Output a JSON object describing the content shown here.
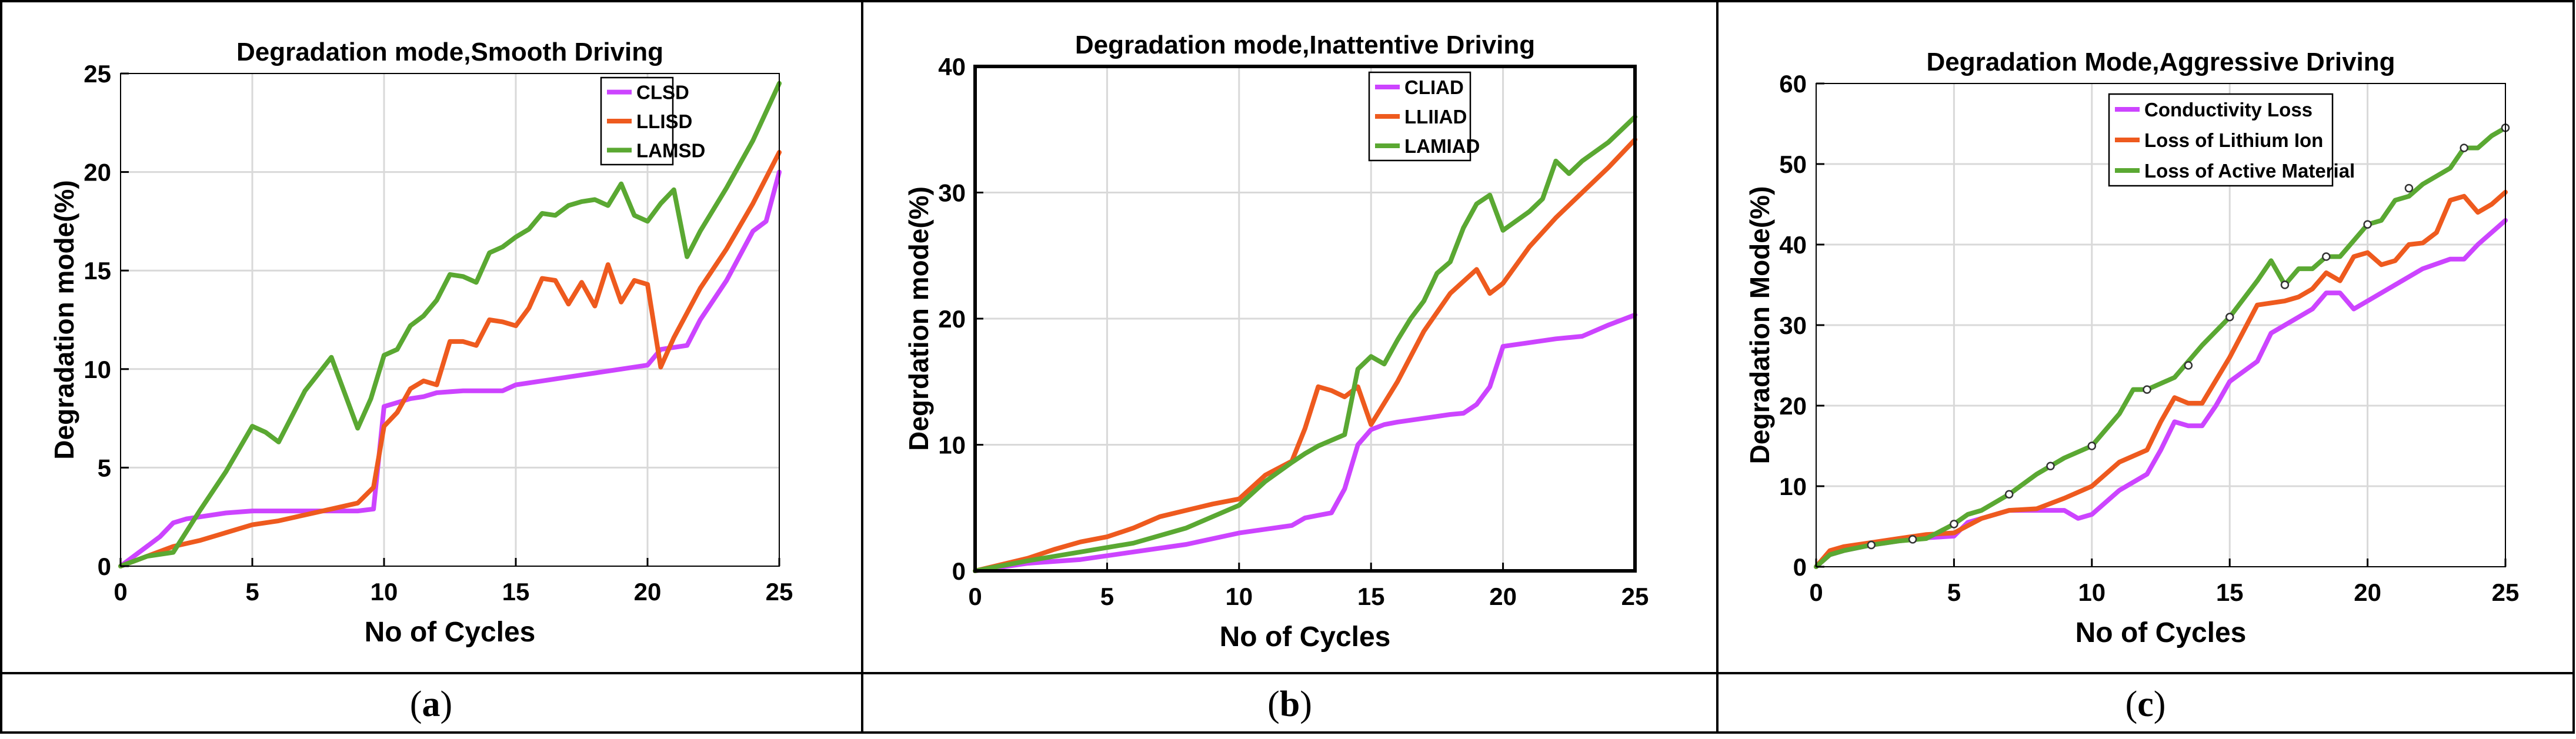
{
  "panels": [
    {
      "label": "(a)",
      "letter": "a"
    },
    {
      "label": "(b)",
      "letter": "b"
    },
    {
      "label": "(c)",
      "letter": "c"
    }
  ],
  "chart_data": [
    {
      "type": "line",
      "title": "Degradation mode,Smooth Driving",
      "xlabel": "No of Cycles",
      "ylabel": "Degradation mode(%)",
      "xlim": [
        0,
        25
      ],
      "ylim": [
        0,
        25
      ],
      "xticks": [
        0,
        5,
        10,
        15,
        20,
        25
      ],
      "yticks": [
        0,
        5,
        10,
        15,
        20,
        25
      ],
      "grid": true,
      "legend_position": "top-right",
      "series": [
        {
          "name": "CLSD",
          "color": "#cc44ff",
          "x": [
            0,
            1,
            1.5,
            2,
            2.5,
            3,
            4,
            5,
            6,
            7,
            8,
            9,
            9.6,
            10,
            10.5,
            11,
            11.5,
            12,
            13,
            14,
            14.5,
            15,
            16,
            17,
            18,
            19,
            20,
            20.5,
            21,
            21.5,
            22,
            23,
            24,
            24.5,
            25
          ],
          "y": [
            0,
            1,
            1.5,
            2.2,
            2.4,
            2.5,
            2.7,
            2.8,
            2.8,
            2.8,
            2.8,
            2.8,
            2.9,
            8.1,
            8.3,
            8.5,
            8.6,
            8.8,
            8.9,
            8.9,
            8.9,
            9.2,
            9.4,
            9.6,
            9.8,
            10,
            10.2,
            11,
            11.1,
            11.2,
            12.5,
            14.5,
            17,
            17.5,
            20
          ]
        },
        {
          "name": "LLISD",
          "color": "#ee5a1e",
          "x": [
            0,
            1,
            2,
            3,
            4,
            5,
            6,
            7,
            8,
            9,
            9.6,
            10,
            10.5,
            11,
            11.5,
            12,
            12.5,
            13,
            13.5,
            14,
            14.5,
            15,
            15.5,
            16,
            16.5,
            17,
            17.5,
            18,
            18.5,
            19,
            19.5,
            20,
            20.5,
            21,
            22,
            23,
            24,
            25
          ],
          "y": [
            0,
            0.5,
            1,
            1.3,
            1.7,
            2.1,
            2.3,
            2.6,
            2.9,
            3.2,
            4,
            7.1,
            7.8,
            9,
            9.4,
            9.2,
            11.4,
            11.4,
            11.2,
            12.5,
            12.4,
            12.2,
            13.1,
            14.6,
            14.5,
            13.3,
            14.4,
            13.2,
            15.3,
            13.4,
            14.5,
            14.3,
            10.1,
            11.6,
            14.1,
            16.1,
            18.4,
            21
          ]
        },
        {
          "name": "LAMSD",
          "color": "#5aa832",
          "x": [
            0,
            1,
            2,
            3,
            4,
            5,
            5.5,
            6,
            7,
            8,
            9,
            9.5,
            10,
            10.5,
            11,
            11.5,
            12,
            12.5,
            13,
            13.5,
            14,
            14.5,
            15,
            15.5,
            16,
            16.5,
            17,
            17.5,
            18,
            18.5,
            19,
            19.5,
            20,
            20.5,
            21,
            21.5,
            22,
            23,
            24,
            25
          ],
          "y": [
            0,
            0.5,
            0.7,
            2.8,
            4.8,
            7.1,
            6.8,
            6.3,
            8.9,
            10.6,
            7,
            8.5,
            10.7,
            11,
            12.2,
            12.7,
            13.5,
            14.8,
            14.7,
            14.4,
            15.9,
            16.2,
            16.7,
            17.1,
            17.9,
            17.8,
            18.3,
            18.5,
            18.6,
            18.3,
            19.4,
            17.8,
            17.5,
            18.4,
            19.1,
            15.7,
            17,
            19.2,
            21.6,
            24.5
          ]
        }
      ]
    },
    {
      "type": "line",
      "title": "Degradation mode,Inattentive Driving",
      "xlabel": "No of Cycles",
      "ylabel": "Degrdation mode(%)",
      "xlim": [
        0,
        25
      ],
      "ylim": [
        0,
        40
      ],
      "xticks": [
        0,
        5,
        10,
        15,
        20,
        25
      ],
      "yticks": [
        0,
        10,
        20,
        30,
        40
      ],
      "grid": true,
      "legend_position": "top-right",
      "series": [
        {
          "name": "CLIAD",
          "color": "#cc44ff",
          "x": [
            0,
            2,
            4,
            6,
            8,
            10,
            12,
            12.5,
            13,
            13.5,
            14,
            14.5,
            15,
            15.5,
            16,
            17,
            18,
            18.5,
            19,
            19.5,
            20,
            21,
            22,
            23,
            24,
            25
          ],
          "y": [
            0,
            0.6,
            0.9,
            1.5,
            2.1,
            3,
            3.6,
            4.2,
            4.4,
            4.6,
            6.5,
            10,
            11.2,
            11.6,
            11.8,
            12.1,
            12.4,
            12.5,
            13.2,
            14.6,
            17.8,
            18.1,
            18.4,
            18.6,
            19.5,
            20.3
          ]
        },
        {
          "name": "LLIIAD",
          "color": "#ee5a1e",
          "x": [
            0,
            1,
            2,
            3,
            4,
            5,
            6,
            7,
            8,
            9,
            10,
            11,
            12,
            12.5,
            13,
            13.5,
            14,
            14.5,
            15,
            16,
            17,
            18,
            19,
            19.5,
            20,
            21,
            22,
            23,
            24,
            25
          ],
          "y": [
            0,
            0.5,
            1,
            1.7,
            2.3,
            2.7,
            3.4,
            4.3,
            4.8,
            5.3,
            5.7,
            7.6,
            8.7,
            11.3,
            14.6,
            14.3,
            13.8,
            14.6,
            11.6,
            15,
            19,
            22,
            23.9,
            22,
            22.8,
            25.7,
            28,
            30,
            32,
            34.2
          ]
        },
        {
          "name": "LAMIAD",
          "color": "#5aa832",
          "x": [
            0,
            2,
            4,
            6,
            8,
            10,
            11,
            12,
            12.5,
            13,
            14,
            14.5,
            15,
            15.5,
            16,
            16.5,
            17,
            17.5,
            18,
            18.5,
            19,
            19.5,
            20,
            21,
            21.5,
            22,
            22.5,
            23,
            24,
            25
          ],
          "y": [
            0,
            0.8,
            1.5,
            2.2,
            3.4,
            5.2,
            7.1,
            8.6,
            9.3,
            9.9,
            10.8,
            16,
            17,
            16.4,
            18.3,
            20,
            21.4,
            23.6,
            24.5,
            27.2,
            29.1,
            29.8,
            27,
            28.5,
            29.5,
            32.5,
            31.5,
            32.5,
            34,
            36
          ]
        }
      ]
    },
    {
      "type": "line",
      "title": "Degradation Mode,Aggressive Driving",
      "xlabel": "No of Cycles",
      "ylabel": "Degradation Mode(%)",
      "xlim": [
        0,
        25
      ],
      "ylim": [
        0,
        60
      ],
      "xticks": [
        0,
        5,
        10,
        15,
        20,
        25
      ],
      "yticks": [
        0,
        10,
        20,
        30,
        40,
        50,
        60
      ],
      "grid": true,
      "legend_position": "top-right",
      "series": [
        {
          "name": "Conductivity Loss",
          "color": "#cc44ff",
          "x": [
            0,
            0.5,
            1,
            2,
            3,
            4,
            5,
            5.5,
            6,
            7,
            8,
            9,
            9.5,
            10,
            11,
            12,
            12.5,
            13,
            13.5,
            14,
            14.5,
            15,
            16,
            16.5,
            17,
            18,
            18.5,
            19,
            19.5,
            20,
            21,
            22,
            23,
            23.5,
            24,
            25
          ],
          "y": [
            0,
            1.5,
            2,
            2.7,
            3.2,
            3.6,
            3.8,
            5.5,
            6,
            7,
            7,
            7,
            6,
            6.5,
            9.5,
            11.5,
            14.5,
            18,
            17.5,
            17.5,
            20,
            23,
            25.5,
            29,
            30,
            32,
            34,
            34,
            32,
            33,
            35,
            37,
            38.2,
            38.2,
            40,
            43
          ]
        },
        {
          "name": "Loss of Lithium Ion",
          "color": "#ee5a1e",
          "x": [
            0,
            0.5,
            1,
            2,
            3,
            4,
            5,
            6,
            7,
            8,
            9,
            10,
            11,
            12,
            12.5,
            13,
            13.5,
            14,
            15,
            16,
            17,
            17.5,
            18,
            18.5,
            19,
            19.5,
            20,
            20.5,
            21,
            21.5,
            22,
            22.5,
            23,
            23.5,
            24,
            24.5,
            25
          ],
          "y": [
            0,
            2,
            2.5,
            3,
            3.5,
            4,
            4.2,
            6,
            7,
            7.2,
            8.5,
            10,
            13,
            14.5,
            18,
            21,
            20.3,
            20.3,
            26,
            32.5,
            33,
            33.5,
            34.5,
            36.5,
            35.5,
            38.5,
            39,
            37.5,
            38,
            40,
            40.2,
            41.5,
            45.5,
            46,
            44,
            45,
            46.5
          ]
        },
        {
          "name": "Loss of Active Material",
          "color": "#5aa832",
          "x": [
            0,
            0.5,
            1,
            2,
            3,
            4,
            5,
            5.5,
            6,
            7,
            8,
            9,
            10,
            11,
            11.5,
            12,
            13,
            14,
            15,
            16,
            16.5,
            17,
            17.5,
            18,
            18.5,
            19,
            19.5,
            20,
            20.5,
            21,
            21.5,
            22,
            23,
            23.5,
            24,
            24.5,
            25
          ],
          "y": [
            0,
            1.5,
            2,
            2.7,
            3.2,
            3.5,
            5.3,
            6.5,
            7,
            9,
            11.5,
            13.5,
            15,
            19,
            22,
            22,
            23.5,
            27.5,
            31,
            35.5,
            38,
            35,
            37,
            37,
            38.5,
            38.5,
            40.5,
            42.5,
            43,
            45.5,
            46,
            47.5,
            49.5,
            52,
            52,
            53.5,
            54.5
          ]
        }
      ],
      "marker_points": [
        {
          "x": 2,
          "y": 2.7
        },
        {
          "x": 3.5,
          "y": 3.4
        },
        {
          "x": 5,
          "y": 5.3
        },
        {
          "x": 7,
          "y": 9
        },
        {
          "x": 8.5,
          "y": 12.5
        },
        {
          "x": 10,
          "y": 15
        },
        {
          "x": 12,
          "y": 22
        },
        {
          "x": 13.5,
          "y": 25
        },
        {
          "x": 15,
          "y": 31
        },
        {
          "x": 17,
          "y": 35
        },
        {
          "x": 18.5,
          "y": 38.5
        },
        {
          "x": 20,
          "y": 42.5
        },
        {
          "x": 21.5,
          "y": 47
        },
        {
          "x": 23.5,
          "y": 52
        },
        {
          "x": 25,
          "y": 54.5
        }
      ]
    }
  ]
}
